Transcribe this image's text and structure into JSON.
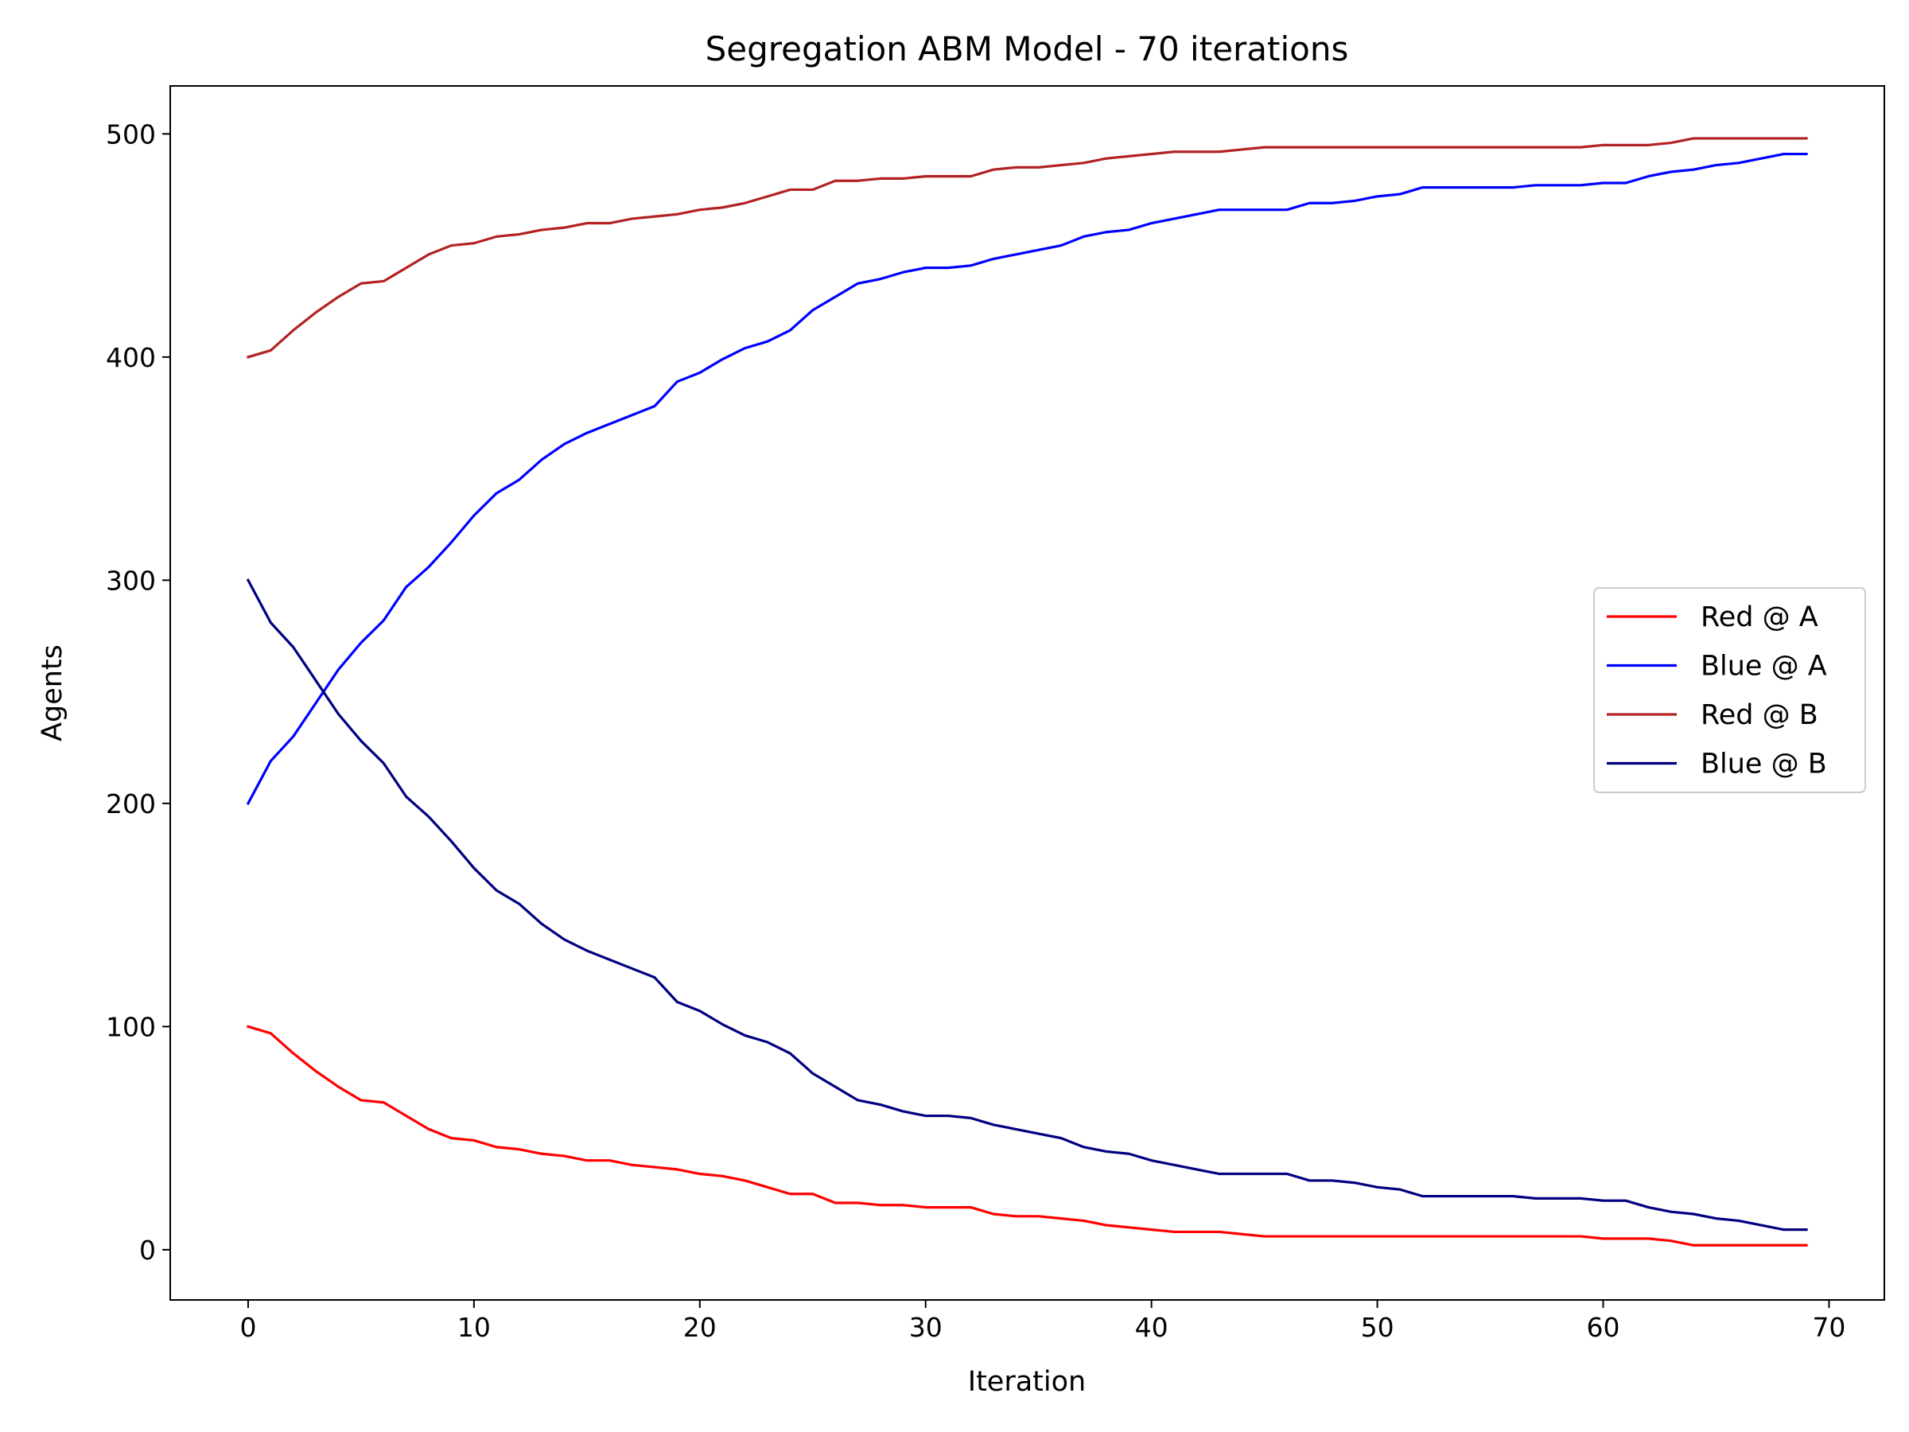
{
  "chart_data": {
    "type": "line",
    "title": "Segregation ABM Model - 70 iterations",
    "xlabel": "Iteration",
    "ylabel": "Agents",
    "xlim": [
      -3.45,
      72.45
    ],
    "ylim": [
      -22.5,
      521.5
    ],
    "xticks": [
      0,
      10,
      20,
      30,
      40,
      50,
      60,
      70
    ],
    "yticks": [
      0,
      100,
      200,
      300,
      400,
      500
    ],
    "grid": false,
    "legend_position": "center-right",
    "x": [
      0,
      1,
      2,
      3,
      4,
      5,
      6,
      7,
      8,
      9,
      10,
      11,
      12,
      13,
      14,
      15,
      16,
      17,
      18,
      19,
      20,
      21,
      22,
      23,
      24,
      25,
      26,
      27,
      28,
      29,
      30,
      31,
      32,
      33,
      34,
      35,
      36,
      37,
      38,
      39,
      40,
      41,
      42,
      43,
      44,
      45,
      46,
      47,
      48,
      49,
      50,
      51,
      52,
      53,
      54,
      55,
      56,
      57,
      58,
      59,
      60,
      61,
      62,
      63,
      64,
      65,
      66,
      67,
      68,
      69
    ],
    "series": [
      {
        "name": "Red @ A",
        "color": "#ff0000",
        "values": [
          100,
          97,
          88,
          80,
          73,
          67,
          66,
          60,
          54,
          50,
          49,
          46,
          45,
          43,
          42,
          40,
          40,
          38,
          37,
          36,
          34,
          33,
          31,
          28,
          25,
          25,
          21,
          21,
          20,
          20,
          19,
          19,
          19,
          16,
          15,
          15,
          14,
          13,
          11,
          10,
          9,
          8,
          8,
          8,
          7,
          6,
          6,
          6,
          6,
          6,
          6,
          6,
          6,
          6,
          6,
          6,
          6,
          6,
          6,
          6,
          5,
          5,
          5,
          4,
          2,
          2,
          2,
          2,
          2,
          2
        ]
      },
      {
        "name": "Blue @ A",
        "color": "#0000ff",
        "values": [
          200,
          219,
          230,
          245,
          260,
          272,
          282,
          297,
          306,
          317,
          329,
          339,
          345,
          354,
          361,
          366,
          370,
          374,
          378,
          389,
          393,
          399,
          404,
          407,
          412,
          421,
          427,
          433,
          435,
          438,
          440,
          440,
          441,
          444,
          446,
          448,
          450,
          454,
          456,
          457,
          460,
          462,
          464,
          466,
          466,
          466,
          466,
          469,
          469,
          470,
          472,
          473,
          476,
          476,
          476,
          476,
          476,
          477,
          477,
          477,
          478,
          478,
          481,
          483,
          484,
          486,
          487,
          489,
          491,
          491
        ]
      },
      {
        "name": "Red @ B",
        "color": "#b22222",
        "values": [
          400,
          403,
          412,
          420,
          427,
          433,
          434,
          440,
          446,
          450,
          451,
          454,
          455,
          457,
          458,
          460,
          460,
          462,
          463,
          464,
          466,
          467,
          469,
          472,
          475,
          475,
          479,
          479,
          480,
          480,
          481,
          481,
          481,
          484,
          485,
          485,
          486,
          487,
          489,
          490,
          491,
          492,
          492,
          492,
          493,
          494,
          494,
          494,
          494,
          494,
          494,
          494,
          494,
          494,
          494,
          494,
          494,
          494,
          494,
          494,
          495,
          495,
          495,
          496,
          498,
          498,
          498,
          498,
          498,
          498
        ]
      },
      {
        "name": "Blue @ B",
        "color": "#000080",
        "values": [
          300,
          281,
          270,
          255,
          240,
          228,
          218,
          203,
          194,
          183,
          171,
          161,
          155,
          146,
          139,
          134,
          130,
          126,
          122,
          111,
          107,
          101,
          96,
          93,
          88,
          79,
          73,
          67,
          65,
          62,
          60,
          60,
          59,
          56,
          54,
          52,
          50,
          46,
          44,
          43,
          40,
          38,
          36,
          34,
          34,
          34,
          34,
          31,
          31,
          30,
          28,
          27,
          24,
          24,
          24,
          24,
          24,
          23,
          23,
          23,
          22,
          22,
          19,
          17,
          16,
          14,
          13,
          11,
          9,
          9
        ]
      }
    ]
  }
}
